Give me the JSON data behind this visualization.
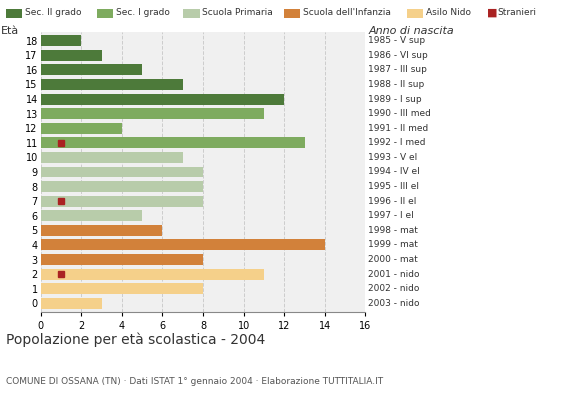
{
  "ages": [
    18,
    17,
    16,
    15,
    14,
    13,
    12,
    11,
    10,
    9,
    8,
    7,
    6,
    5,
    4,
    3,
    2,
    1,
    0
  ],
  "birth_years": [
    "1985 - V sup",
    "1986 - VI sup",
    "1987 - III sup",
    "1988 - II sup",
    "1989 - I sup",
    "1990 - III med",
    "1991 - II med",
    "1992 - I med",
    "1993 - V el",
    "1994 - IV el",
    "1995 - III el",
    "1996 - II el",
    "1997 - I el",
    "1998 - mat",
    "1999 - mat",
    "2000 - mat",
    "2001 - nido",
    "2002 - nido",
    "2003 - nido"
  ],
  "bar_values": [
    2,
    3,
    5,
    7,
    12,
    11,
    4,
    13,
    7,
    8,
    8,
    8,
    5,
    6,
    14,
    8,
    11,
    8,
    3
  ],
  "bar_colors": [
    "#4d7a3a",
    "#4d7a3a",
    "#4d7a3a",
    "#4d7a3a",
    "#4d7a3a",
    "#7eab5f",
    "#7eab5f",
    "#7eab5f",
    "#b8ccaa",
    "#b8ccaa",
    "#b8ccaa",
    "#b8ccaa",
    "#b8ccaa",
    "#d2813a",
    "#d2813a",
    "#d2813a",
    "#f5d08a",
    "#f5d08a",
    "#f5d08a"
  ],
  "stranieri": [
    null,
    null,
    null,
    null,
    null,
    null,
    null,
    1,
    null,
    null,
    null,
    1,
    null,
    null,
    null,
    null,
    1,
    null,
    null
  ],
  "legend_labels": [
    "Sec. II grado",
    "Sec. I grado",
    "Scuola Primaria",
    "Scuola dell'Infanzia",
    "Asilo Nido",
    "Stranieri"
  ],
  "legend_colors": [
    "#4d7a3a",
    "#7eab5f",
    "#b8ccaa",
    "#d2813a",
    "#f5d08a",
    "#aa2222"
  ],
  "title": "Popolazione per età scolastica - 2004",
  "subtitle": "COMUNE DI OSSANA (TN) · Dati ISTAT 1° gennaio 2004 · Elaborazione TUTTITALIA.IT",
  "xlabel_eta": "Età",
  "xlabel_anno": "Anno di nascita",
  "xlim": [
    0,
    16
  ],
  "xticks": [
    0,
    2,
    4,
    6,
    8,
    10,
    12,
    14,
    16
  ],
  "bg_color": "#ffffff",
  "plot_bg_color": "#f0f0f0",
  "grid_color": "#cccccc",
  "bar_height": 0.75,
  "stranieri_color": "#aa2222",
  "stranieri_size": 5
}
